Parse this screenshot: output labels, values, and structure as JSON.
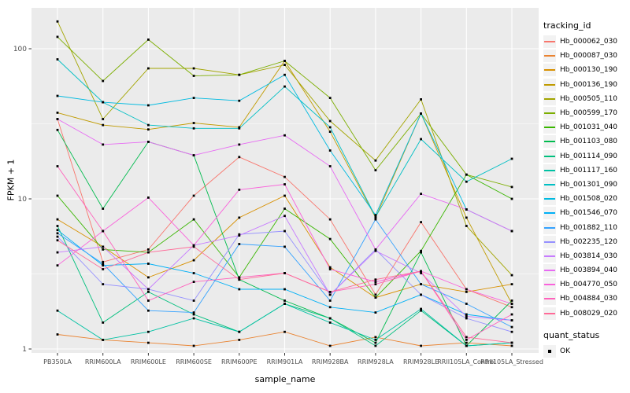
{
  "chart_data": {
    "type": "line",
    "title": "",
    "xlabel": "sample_name",
    "ylabel": "FPKM + 1",
    "y_scale": "log10",
    "ylim": [
      1,
      190
    ],
    "y_ticks": [
      100,
      10,
      1
    ],
    "y_tick_labels": [
      "100",
      "10",
      "1"
    ],
    "y_minor_ticks": [
      31.62,
      3.162
    ],
    "grid": true,
    "panel_bg": "#EBEBEB",
    "grid_color": "#FFFFFF",
    "tick_text_color": "#4D4D4D",
    "legend_position": "right",
    "legend_title": "tracking_id",
    "point_legend": {
      "title": "quant_status",
      "label": "OK",
      "marker": "black-square"
    },
    "categories": [
      "PB350LA",
      "RRIM600LA",
      "RRIM600LE",
      "RRIM600SE",
      "RRIM600PE",
      "RRIM901LA",
      "RRIM928BA",
      "RRIM928LA",
      "RRIM928LE",
      "RRII105LA_Control",
      "RRII105LA_Stressed"
    ],
    "series": [
      {
        "name": "Hb_000062_030",
        "color": "#F8766D",
        "values": [
          34,
          3.8,
          4.6,
          10.5,
          19,
          14,
          7.3,
          2.3,
          7.0,
          2.5,
          1.9
        ]
      },
      {
        "name": "Hb_000087_030",
        "color": "#EA8331",
        "values": [
          1.25,
          1.15,
          1.1,
          1.05,
          1.15,
          1.3,
          1.05,
          1.2,
          1.05,
          1.1,
          1.05
        ]
      },
      {
        "name": "Hb_000130_190",
        "color": "#D89000",
        "values": [
          7.3,
          4.8,
          3.0,
          3.9,
          7.5,
          10.5,
          3.5,
          2.2,
          2.7,
          2.4,
          2.7
        ]
      },
      {
        "name": "Hb_000136_190",
        "color": "#C09B00",
        "values": [
          37.5,
          31,
          29,
          32,
          30,
          83,
          28,
          7.5,
          37,
          7.5,
          2.0
        ]
      },
      {
        "name": "Hb_000505_110",
        "color": "#A3A500",
        "values": [
          152,
          34,
          74,
          74,
          67,
          78,
          33,
          18,
          46,
          6.6,
          3.1
        ]
      },
      {
        "name": "Hb_000599_170",
        "color": "#7CAE00",
        "values": [
          120,
          61,
          115,
          66,
          67,
          83,
          47,
          15.5,
          37,
          14.5,
          12
        ]
      },
      {
        "name": "Hb_001031_040",
        "color": "#39B600",
        "values": [
          10.5,
          4.6,
          4.4,
          7.3,
          3.0,
          8.6,
          5.4,
          2.2,
          4.5,
          14.5,
          10
        ]
      },
      {
        "name": "Hb_001103_080",
        "color": "#00BB4E",
        "values": [
          28.8,
          8.6,
          24,
          19.5,
          2.9,
          2.1,
          1.6,
          1.1,
          4.4,
          1.05,
          2.1
        ]
      },
      {
        "name": "Hb_001114_090",
        "color": "#00BF7D",
        "values": [
          6.6,
          1.5,
          2.4,
          1.7,
          1.3,
          2.0,
          1.6,
          1.05,
          1.8,
          1.05,
          1.1
        ]
      },
      {
        "name": "Hb_001117_160",
        "color": "#00C1A3",
        "values": [
          1.8,
          1.15,
          1.3,
          1.6,
          1.3,
          2.0,
          1.5,
          1.15,
          1.85,
          1.05,
          1.1
        ]
      },
      {
        "name": "Hb_001301_090",
        "color": "#00BFC4",
        "values": [
          85,
          44,
          31,
          29.5,
          29.5,
          56,
          30,
          7.6,
          25,
          13,
          18.5
        ]
      },
      {
        "name": "Hb_001508_020",
        "color": "#00BAE0",
        "values": [
          48.5,
          44,
          42,
          47,
          45,
          67,
          21,
          7.8,
          37,
          8.5,
          6.1
        ]
      },
      {
        "name": "Hb_001546_070",
        "color": "#00B0F6",
        "values": [
          6.2,
          3.6,
          3.7,
          3.2,
          2.5,
          2.5,
          1.9,
          1.75,
          2.3,
          1.7,
          1.55
        ]
      },
      {
        "name": "Hb_001882_110",
        "color": "#35A2FF",
        "values": [
          5.9,
          3.7,
          1.8,
          1.75,
          5.0,
          4.8,
          2.1,
          7.3,
          2.7,
          2.0,
          1.4
        ]
      },
      {
        "name": "Hb_002235_120",
        "color": "#9590FF",
        "values": [
          5.6,
          2.7,
          2.5,
          2.1,
          5.8,
          6.1,
          2.3,
          4.6,
          2.3,
          1.6,
          1.3
        ]
      },
      {
        "name": "Hb_003814_030",
        "color": "#C77CFF",
        "values": [
          4.4,
          4.8,
          2.5,
          4.9,
          5.7,
          7.7,
          2.3,
          4.5,
          3.2,
          1.65,
          1.55
        ]
      },
      {
        "name": "Hb_003894_040",
        "color": "#E76BF3",
        "values": [
          34,
          23,
          24,
          19.5,
          23,
          26.5,
          16.5,
          4.6,
          10.8,
          8.5,
          6.1
        ]
      },
      {
        "name": "Hb_004770_050",
        "color": "#FA62DB",
        "values": [
          3.6,
          6.1,
          10.2,
          4.9,
          11.5,
          12.5,
          3.4,
          2.8,
          3.3,
          2.5,
          2.0
        ]
      },
      {
        "name": "Hb_004884_030",
        "color": "#FF62BC",
        "values": [
          16.5,
          6.1,
          2.1,
          2.8,
          3.0,
          3.2,
          2.4,
          2.7,
          3.3,
          1.15,
          1.7
        ]
      },
      {
        "name": "Hb_008029_020",
        "color": "#FF6A98",
        "values": [
          5.3,
          3.4,
          4.4,
          4.8,
          2.9,
          3.2,
          2.4,
          2.9,
          3.3,
          1.2,
          1.1
        ]
      }
    ]
  }
}
